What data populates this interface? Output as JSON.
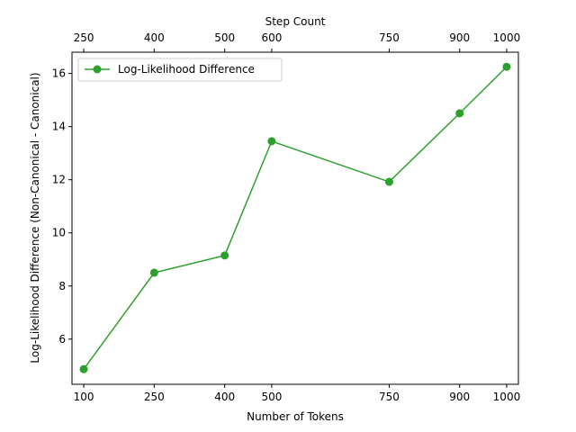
{
  "chart_data": {
    "type": "line",
    "x": [
      100,
      250,
      400,
      500,
      750,
      900,
      1000
    ],
    "series": [
      {
        "name": "Log-Likelihood Difference",
        "color": "#2ca02c",
        "marker": "circle",
        "values": [
          4.87,
          8.5,
          9.15,
          13.45,
          11.92,
          14.5,
          16.25
        ]
      }
    ],
    "xlabel": "Number of Tokens",
    "ylabel": "Log-Likelihood Difference (Non-Canonical - Canonical)",
    "xlim": [
      75,
      1025
    ],
    "ylim": [
      4.3,
      16.8
    ],
    "x_ticks": [
      100,
      250,
      400,
      500,
      750,
      900,
      1000
    ],
    "y_ticks": [
      6,
      8,
      10,
      12,
      14,
      16
    ],
    "secondary_x_axis": {
      "label": "Step Count",
      "ticks": [
        100,
        250,
        400,
        500,
        750,
        900,
        1000
      ],
      "tick_labels": [
        "250",
        "400",
        "500",
        "600",
        "750",
        "900",
        "1000"
      ]
    },
    "legend_position": "top-left",
    "grid": false
  }
}
